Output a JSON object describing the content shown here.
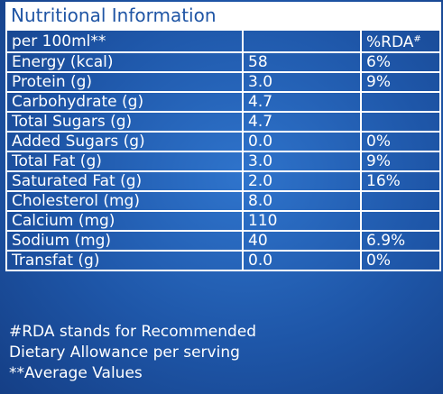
{
  "title": "Nutritional Information",
  "table": {
    "header": [
      "per 100ml**",
      null,
      {
        "text": "%RDA",
        "sup": "#"
      }
    ],
    "rows": [
      [
        "Energy (kcal)",
        "58",
        "6%"
      ],
      [
        "Protein (g)",
        "3.0",
        "9%"
      ],
      [
        "Carbohydrate (g)",
        "4.7",
        null
      ],
      [
        "Total Sugars (g)",
        "4.7",
        null
      ],
      [
        "Added Sugars (g)",
        "0.0",
        "0%"
      ],
      [
        "Total Fat (g)",
        "3.0",
        "9%"
      ],
      [
        "Saturated Fat (g)",
        "2.0",
        "16%"
      ],
      [
        "Cholesterol (mg)",
        "8.0",
        null
      ],
      [
        "Calcium (mg)",
        "110",
        null
      ],
      [
        "Sodium (mg)",
        "40",
        "6.9%"
      ],
      [
        "Transfat (g)",
        "0.0",
        "0%"
      ]
    ]
  },
  "notes": [
    "#RDA stands for Recommended",
    "Dietary Allowance per serving",
    "**Average Values"
  ]
}
